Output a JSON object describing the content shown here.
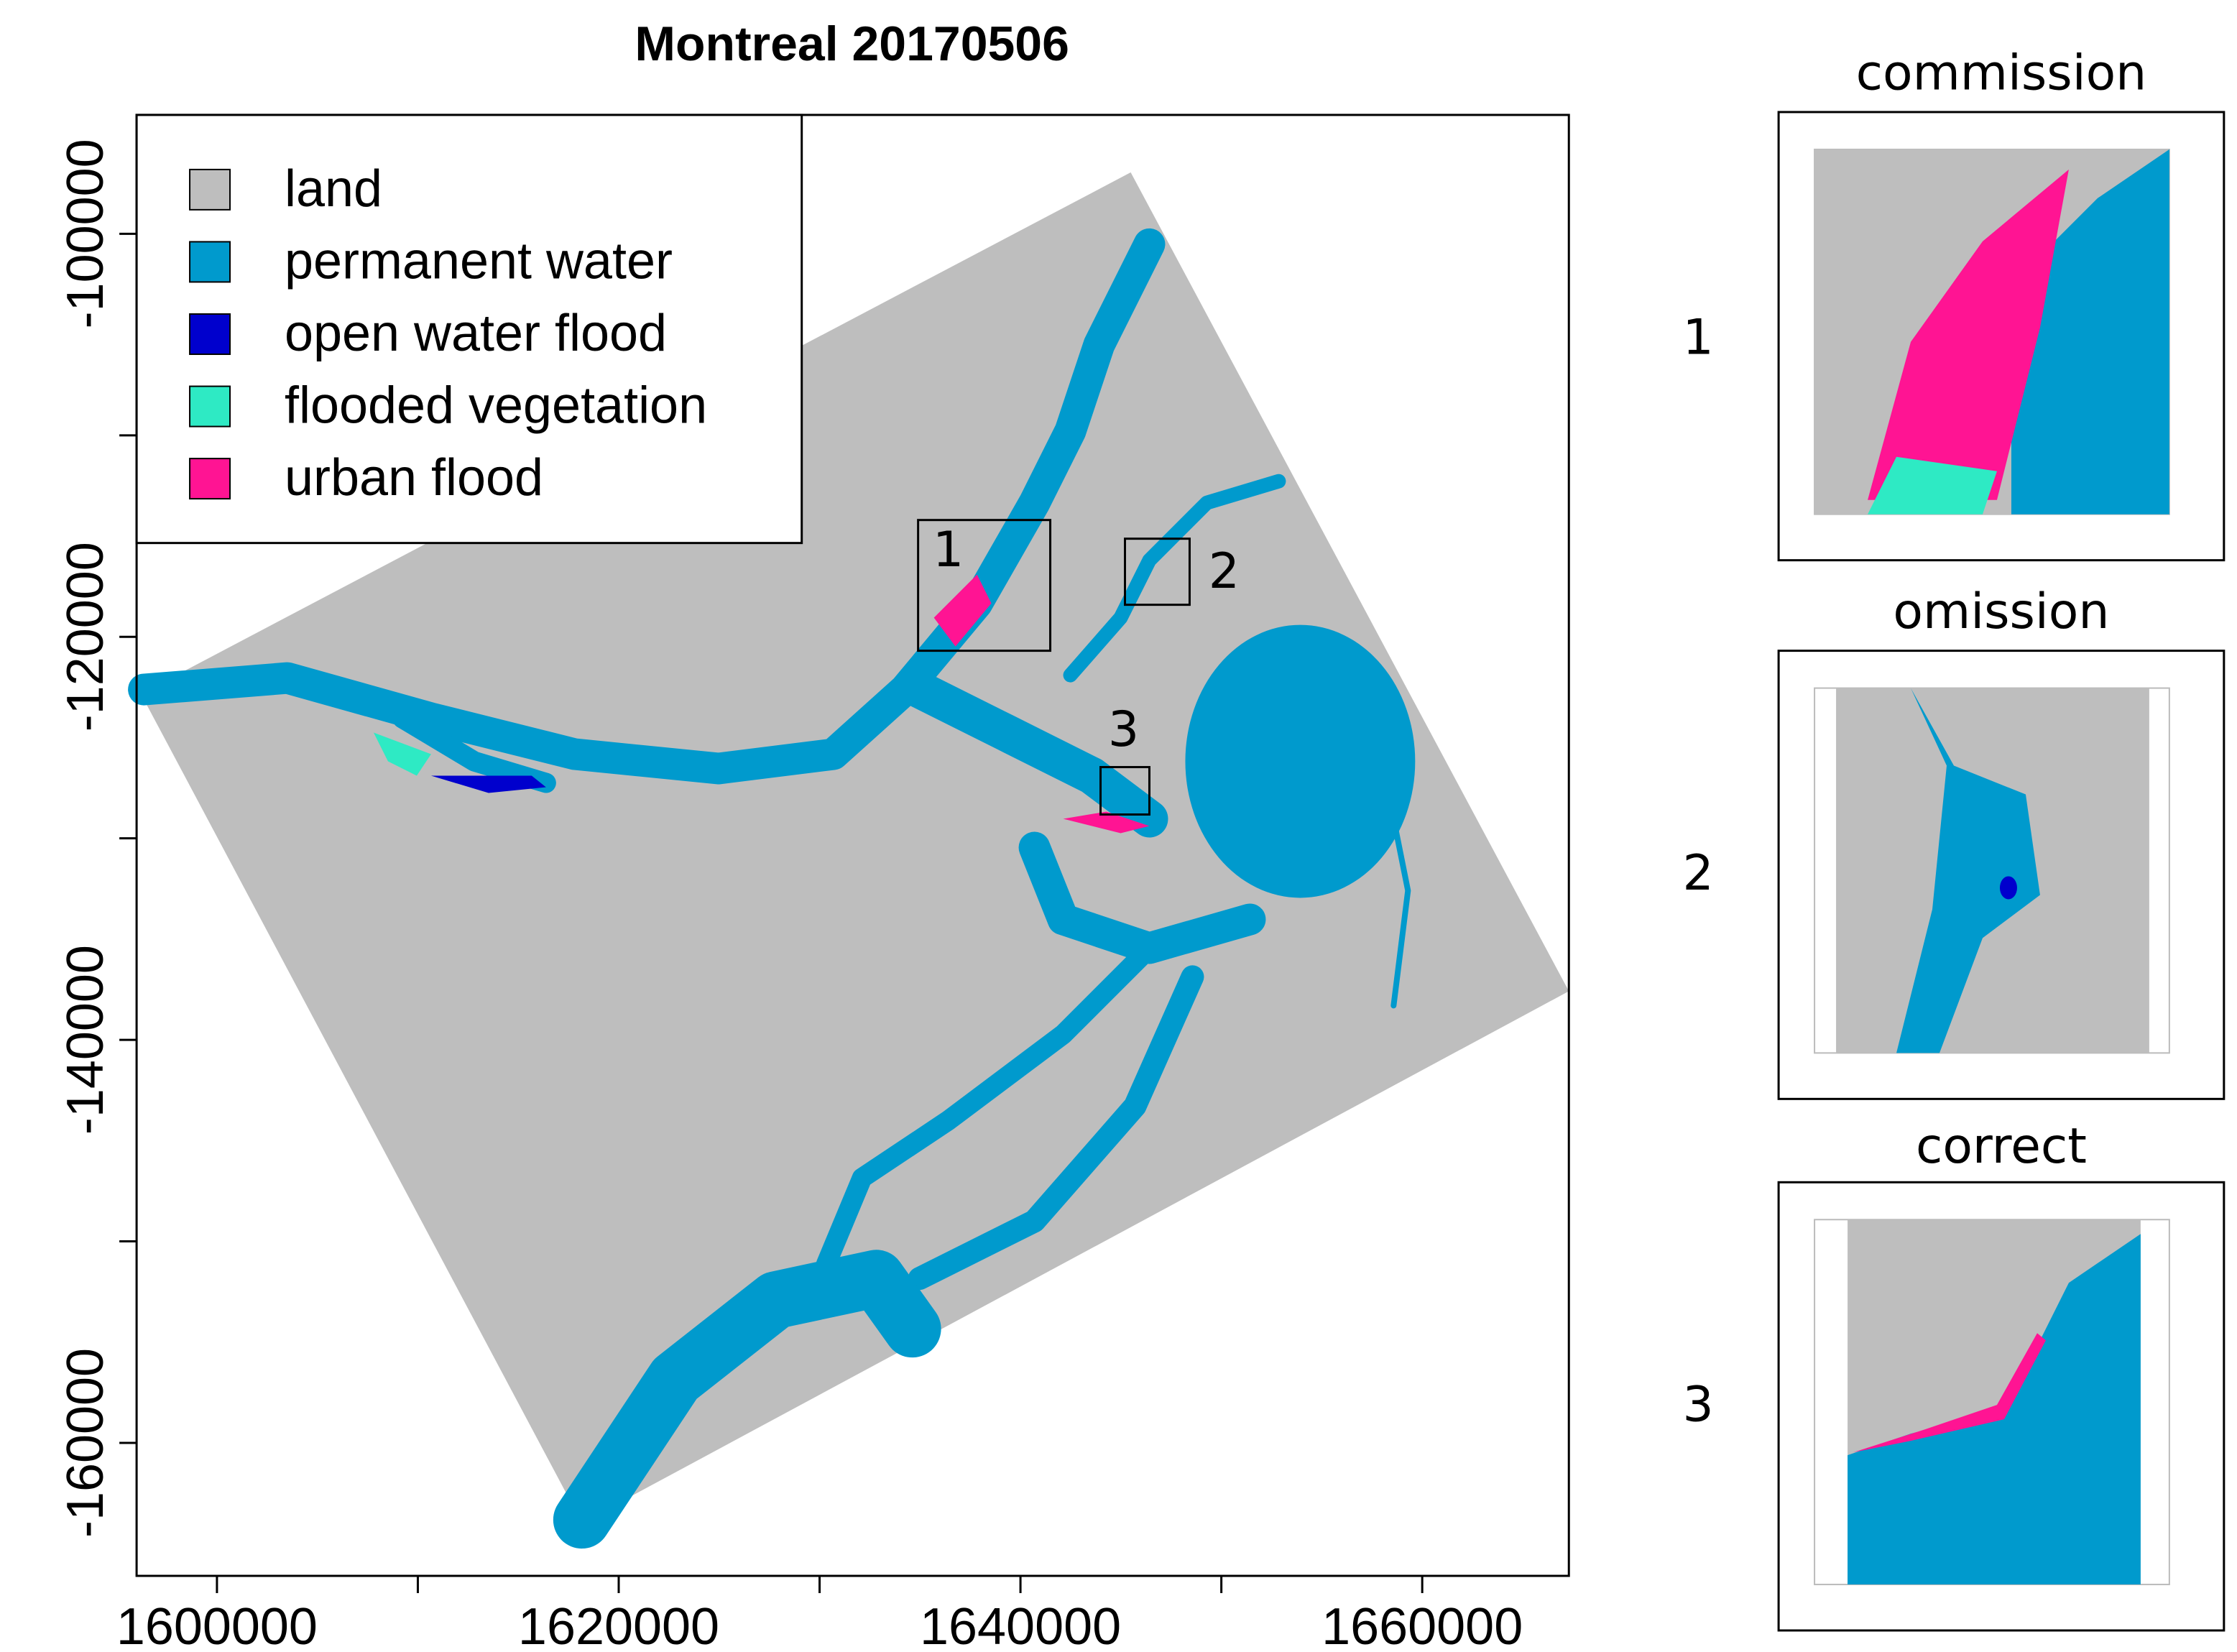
{
  "title": "Montreal 20170506",
  "axes": {
    "xlim": [
      1596000,
      1667300
    ],
    "ylim": [
      -166600,
      -94100
    ],
    "xticks": [
      1600000,
      1620000,
      1640000,
      1660000
    ],
    "yticks": [
      -100000,
      -120000,
      -140000,
      -160000
    ]
  },
  "legend": [
    {
      "label": "land",
      "color": "#bebebe"
    },
    {
      "label": "permanent water",
      "color": "#009acd"
    },
    {
      "label": "open water flood",
      "color": "#0000cd"
    },
    {
      "label": "flooded vegetation",
      "color": "#2eeac4"
    },
    {
      "label": "urban flood",
      "color": "#ff1493"
    }
  ],
  "regions": [
    {
      "label": "1"
    },
    {
      "label": "2"
    },
    {
      "label": "3"
    }
  ],
  "insets": [
    {
      "title": "commission",
      "label": "1"
    },
    {
      "title": "omission",
      "label": "2"
    },
    {
      "title": "correct",
      "label": "3"
    }
  ]
}
